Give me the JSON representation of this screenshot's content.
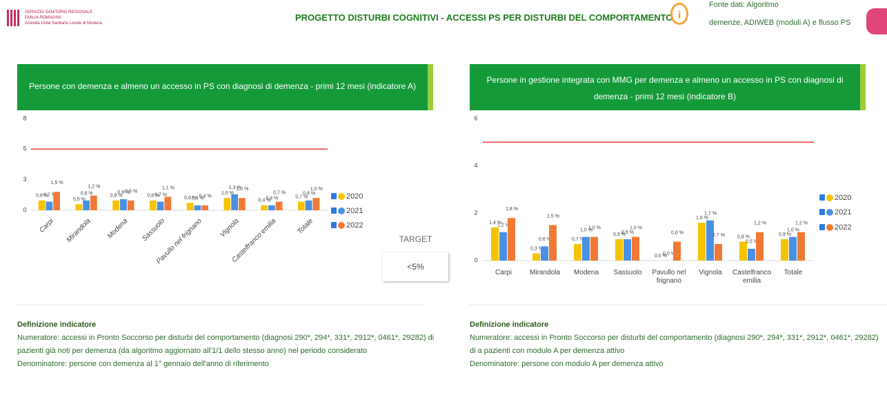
{
  "header": {
    "logo": [
      "SERVIZIO SANITARIO REGIONALE",
      "EMILIA-ROMAGNA",
      "Azienda Unità Sanitaria Locale di Modena"
    ],
    "title": "PROGETTO DISTURBI COGNITIVI - ACCESSI PS PER DISTURBI DEL COMPORTAMENTO",
    "source": [
      "Fonte dati: Algoritmo",
      "demenze, ADIWEB (moduli A) e flusso PS"
    ]
  },
  "target": {
    "label": "TARGET",
    "value": "<5%"
  },
  "chart_data": [
    {
      "type": "bar",
      "title": "Persone con demenza e almeno un accesso in PS con diagnosi di demenza - primi 12 mesi (indicatore A)",
      "categories": [
        "Carpi",
        "Mirandola",
        "Modena",
        "Sassuolo",
        "Pavullo nel frignano",
        "Vignola",
        "Castelfranco emilia",
        "Totale"
      ],
      "series": [
        {
          "name": "2020",
          "color": "#f5c400",
          "values": [
            0.8,
            0.5,
            0.8,
            0.8,
            0.6,
            1.0,
            0.4,
            0.7
          ],
          "value_labels": [
            "0,8 %",
            "0,5 %",
            "0,8 %",
            "0,8 %",
            "0,6 %",
            "1,0 %",
            "0,4 %",
            "0,7 %"
          ]
        },
        {
          "name": "2021",
          "color": "#4a90e2",
          "values": [
            0.7,
            0.8,
            0.9,
            0.7,
            0.4,
            1.3,
            0.4,
            0.8
          ],
          "value_labels": [
            "0,7 %",
            "0,8 %",
            "0,9 %",
            "0,7 %",
            "0,4 %",
            "1,3 %",
            "0,4 %",
            "0,8 %"
          ]
        },
        {
          "name": "2022",
          "color": "#f07a35",
          "values": [
            1.5,
            1.2,
            0.8,
            1.1,
            0.4,
            1.0,
            0.7,
            1.0
          ],
          "value_labels": [
            "1,5 %",
            "1,2 %",
            "0,8 %",
            "1,1 %",
            "0,4 %",
            "1,0 %",
            "0,7 %",
            "1,0 %"
          ]
        }
      ],
      "ylim": [
        0,
        8
      ],
      "yticks": [
        0,
        {
          "value": 2.5,
          "label": "3"
        },
        5,
        {
          "value": 7.5,
          "label": "8"
        }
      ],
      "target_line": 5,
      "target_color": "#e53935",
      "legend": "right",
      "definition": {
        "heading": "Definizione indicatore",
        "lines": [
          "Numeratore: accessi in Pronto Soccorso per disturbi del comportamento (diagnosi 290*, 294*, 331*, 2912*, 0461*, 29282) di",
          "pazienti già noti per demenza (da algoritmo aggiornato all'1/1 dello stesso anno) nel periodo considerato",
          "Denominatore: persone con demenza al 1° gennaio dell'anno di riferimento"
        ]
      }
    },
    {
      "type": "bar",
      "title": "Persone in gestione integrata con MMG per demenza e almeno un accesso in PS con diagnosi di demenza - primi 12 mesi (indicatore B)",
      "categories": [
        "Carpi",
        "Mirandola",
        "Modena",
        "Sassuolo",
        "Pavullo nel frignano",
        "Vignola",
        "Castelfranco emilia",
        "Totale"
      ],
      "series": [
        {
          "name": "2020",
          "color": "#f5c400",
          "values": [
            1.4,
            0.3,
            0.7,
            0.9,
            0.0,
            1.6,
            0.8,
            0.9
          ],
          "value_labels": [
            "1,4 %",
            "0,3 %",
            "0,7 %",
            "0,9 %",
            "0,0 %",
            "1,6 %",
            "0,8 %",
            "0,9 %"
          ]
        },
        {
          "name": "2021",
          "color": "#4a90e2",
          "values": [
            1.2,
            0.6,
            1.0,
            0.9,
            0.0,
            1.7,
            0.5,
            1.0
          ],
          "value_labels": [
            "1,2 %",
            "0,6 %",
            "1,0 %",
            "0,9 %",
            "0,0 %",
            "1,7 %",
            "0,5 %",
            "1,0 %"
          ]
        },
        {
          "name": "2022",
          "color": "#f07a35",
          "values": [
            1.8,
            1.5,
            1.0,
            1.0,
            0.8,
            0.7,
            1.2,
            1.2
          ],
          "value_labels": [
            "1,8 %",
            "1,5 %",
            "1,0 %",
            "1,0 %",
            "0,8 %",
            "0,7 %",
            "1,2 %",
            "1,2 %"
          ]
        }
      ],
      "ylim": [
        0,
        6
      ],
      "yticks": [
        0,
        2,
        4,
        6
      ],
      "target_line": 5,
      "target_color": "#e53935",
      "legend": "right",
      "definition": {
        "heading": "Definizione indicatore",
        "lines": [
          "Numeratore: accessi in Pronto Soccorso per disturbi del comportamento (diagnosi 290*, 294*, 331*, 2912*, 0461*, 29282)",
          "di a pazienti con modulo A per demenza attivo",
          "Denominatore: persone con modulo A per demenza attivo"
        ]
      }
    }
  ]
}
